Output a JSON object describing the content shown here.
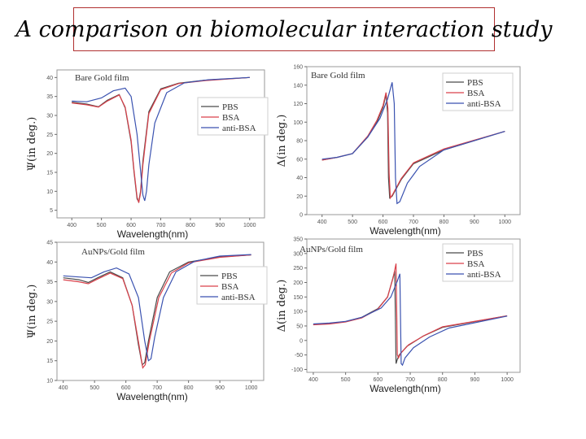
{
  "title": "A comparison on biomolecular interaction study",
  "colors": {
    "PBS": "#4a4a4a",
    "BSA": "#d9404a",
    "anti-BSA": "#3a52b0"
  },
  "chart_data": [
    {
      "type": "line",
      "panel_label": "Bare Gold film",
      "xlabel": "Wavelength(nm)",
      "ylabel": "Ψ(in deg.)",
      "xlim": [
        350,
        1050
      ],
      "ylim": [
        3,
        42
      ],
      "xticks": [
        400,
        500,
        600,
        700,
        800,
        900,
        1000
      ],
      "yticks": [
        5,
        10,
        15,
        20,
        25,
        30,
        35,
        40
      ],
      "legend": [
        "PBS",
        "BSA",
        "anti-BSA"
      ],
      "legend_position": "right",
      "series": [
        {
          "name": "PBS",
          "x": [
            400,
            450,
            490,
            520,
            560,
            580,
            600,
            610,
            620,
            626,
            632,
            640,
            660,
            700,
            760,
            850,
            1000
          ],
          "y": [
            33.5,
            33,
            32.3,
            34,
            35.5,
            32,
            23,
            15,
            8,
            7.2,
            10,
            18,
            31,
            37,
            38.5,
            39.3,
            40
          ]
        },
        {
          "name": "BSA",
          "x": [
            400,
            450,
            490,
            520,
            560,
            580,
            600,
            610,
            620,
            626,
            632,
            640,
            660,
            700,
            760,
            850,
            1000
          ],
          "y": [
            33.3,
            32.8,
            32.2,
            33.8,
            35.4,
            32.2,
            23.5,
            15.5,
            8.5,
            7,
            9.5,
            17,
            30.5,
            36.8,
            38.4,
            39.2,
            40
          ]
        },
        {
          "name": "anti-BSA",
          "x": [
            400,
            450,
            500,
            540,
            580,
            600,
            620,
            630,
            640,
            646,
            652,
            660,
            680,
            720,
            780,
            860,
            1000
          ],
          "y": [
            33.8,
            33.6,
            34.6,
            36.5,
            37.2,
            35,
            25,
            17,
            9,
            7.5,
            10,
            17,
            28,
            36,
            38.6,
            39.4,
            40
          ]
        }
      ]
    },
    {
      "type": "line",
      "panel_label": "Bare Gold film",
      "xlabel": "Wavelength(nm)",
      "ylabel": "Δ(in deg.)",
      "xlim": [
        350,
        1050
      ],
      "ylim": [
        0,
        160
      ],
      "xticks": [
        400,
        500,
        600,
        700,
        800,
        900,
        1000
      ],
      "yticks": [
        0,
        20,
        40,
        60,
        80,
        100,
        120,
        140,
        160
      ],
      "legend": [
        "PBS",
        "BSA",
        "anti-BSA"
      ],
      "legend_position": "top-right",
      "series": [
        {
          "name": "PBS",
          "x": [
            400,
            450,
            500,
            550,
            580,
            600,
            610,
            615,
            618,
            622,
            630,
            660,
            700,
            800,
            1000
          ],
          "y": [
            59,
            62,
            66,
            84,
            100,
            116,
            130,
            110,
            40,
            18,
            20,
            38,
            55,
            70,
            90
          ]
        },
        {
          "name": "BSA",
          "x": [
            400,
            450,
            500,
            550,
            580,
            600,
            610,
            616,
            620,
            624,
            632,
            660,
            700,
            800,
            1000
          ],
          "y": [
            59,
            62,
            66,
            85,
            102,
            118,
            132,
            115,
            45,
            18,
            22,
            39,
            56,
            71,
            90
          ]
        },
        {
          "name": "anti-BSA",
          "x": [
            400,
            450,
            500,
            550,
            590,
            615,
            630,
            637,
            641,
            646,
            655,
            680,
            720,
            800,
            1000
          ],
          "y": [
            60,
            62,
            66,
            84,
            104,
            125,
            143,
            120,
            40,
            12,
            14,
            34,
            52,
            70,
            90
          ]
        }
      ]
    },
    {
      "type": "line",
      "panel_label": "AuNPs/Gold film",
      "xlabel": "Wavelength(nm)",
      "ylabel": "Ψ(in deg.)",
      "xlim": [
        380,
        1040
      ],
      "ylim": [
        10,
        45
      ],
      "xticks": [
        400,
        500,
        600,
        700,
        800,
        900,
        1000
      ],
      "yticks": [
        10,
        15,
        20,
        25,
        30,
        35,
        40,
        45
      ],
      "legend": [
        "PBS",
        "BSA",
        "anti-BSA"
      ],
      "legend_position": "right",
      "series": [
        {
          "name": "PBS",
          "x": [
            400,
            450,
            480,
            510,
            550,
            590,
            620,
            640,
            652,
            660,
            672,
            700,
            740,
            800,
            900,
            1000
          ],
          "y": [
            36,
            35.5,
            34.8,
            36,
            37.5,
            36,
            29,
            19,
            14,
            14.5,
            20,
            31,
            37.5,
            40,
            41.3,
            41.8
          ]
        },
        {
          "name": "BSA",
          "x": [
            400,
            450,
            480,
            510,
            550,
            590,
            620,
            642,
            654,
            662,
            675,
            705,
            745,
            800,
            900,
            1000
          ],
          "y": [
            35.5,
            35,
            34.5,
            35.7,
            37.2,
            35.8,
            29,
            19,
            13.2,
            14,
            20,
            31,
            37.2,
            39.8,
            41.2,
            41.8
          ]
        },
        {
          "name": "anti-BSA",
          "x": [
            400,
            450,
            490,
            530,
            570,
            610,
            640,
            660,
            672,
            680,
            692,
            720,
            760,
            820,
            900,
            1000
          ],
          "y": [
            36.5,
            36.2,
            36,
            37.5,
            38.5,
            37,
            31,
            20,
            15,
            15.5,
            21,
            31,
            37.5,
            40.2,
            41.5,
            41.9
          ]
        }
      ]
    },
    {
      "type": "line",
      "panel_label": "AuNPs/Gold film",
      "xlabel": "Wavelength(nm)",
      "ylabel": "Δ(in deg.)",
      "xlim": [
        380,
        1040
      ],
      "ylim": [
        -110,
        350
      ],
      "xticks": [
        400,
        500,
        600,
        700,
        800,
        900,
        1000
      ],
      "yticks": [
        -100,
        -50,
        0,
        50,
        100,
        150,
        200,
        250,
        300,
        350
      ],
      "legend": [
        "PBS",
        "BSA",
        "anti-BSA"
      ],
      "legend_position": "top-right",
      "series": [
        {
          "name": "PBS",
          "x": [
            400,
            450,
            500,
            550,
            600,
            630,
            645,
            652,
            656,
            660,
            666,
            690,
            740,
            800,
            1000
          ],
          "y": [
            55,
            58,
            65,
            80,
            110,
            150,
            210,
            240,
            -80,
            -65,
            -50,
            -20,
            15,
            45,
            85
          ]
        },
        {
          "name": "BSA",
          "x": [
            400,
            450,
            500,
            550,
            600,
            630,
            648,
            656,
            660,
            664,
            670,
            695,
            745,
            800,
            1000
          ],
          "y": [
            54,
            57,
            64,
            78,
            108,
            150,
            220,
            265,
            -50,
            -60,
            -45,
            -15,
            18,
            47,
            85
          ]
        },
        {
          "name": "anti-BSA",
          "x": [
            400,
            450,
            500,
            550,
            610,
            640,
            660,
            668,
            672,
            676,
            684,
            710,
            760,
            820,
            1000
          ],
          "y": [
            57,
            60,
            66,
            80,
            112,
            150,
            205,
            230,
            -80,
            -85,
            -60,
            -25,
            12,
            43,
            84
          ]
        }
      ]
    }
  ]
}
